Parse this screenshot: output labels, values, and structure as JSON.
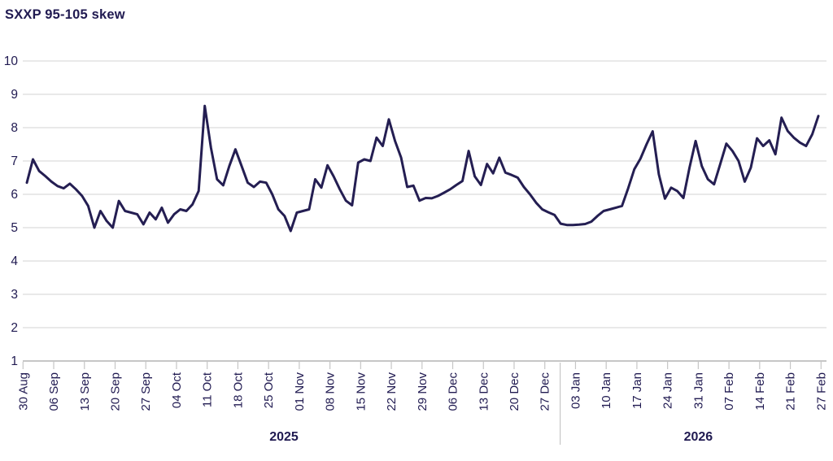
{
  "chart_data": {
    "type": "line",
    "title": "SXXP 95-105 skew",
    "xlabel": "",
    "ylabel": "",
    "ylim": [
      1,
      10
    ],
    "y_ticks": [
      1,
      2,
      3,
      4,
      5,
      6,
      7,
      8,
      9,
      10
    ],
    "grid": "horizontal",
    "legend": "none",
    "x_tick_labels": [
      "30 Aug",
      "06 Sep",
      "13 Sep",
      "20 Sep",
      "27 Sep",
      "04 Oct",
      "11 Oct",
      "18 Oct",
      "25 Oct",
      "01 Nov",
      "08 Nov",
      "15 Nov",
      "22 Nov",
      "29 Nov",
      "06 Dec",
      "13 Dec",
      "20 Dec",
      "27 Dec",
      "03 Jan",
      "10 Jan",
      "17 Jan",
      "24 Jan",
      "31 Jan",
      "07 Feb",
      "14 Feb",
      "21 Feb",
      "27 Feb"
    ],
    "year_labels": [
      {
        "text": "2025",
        "from_tick": 0,
        "to_tick": 17
      },
      {
        "text": "2026",
        "from_tick": 18,
        "to_tick": 26
      }
    ],
    "year_separator_between_ticks": [
      17,
      18
    ],
    "series": [
      {
        "name": "SXXP 95-105 skew",
        "dates": [
          "2025-09-01",
          "2025-09-02",
          "2025-09-03",
          "2025-09-04",
          "2025-09-05",
          "2025-09-08",
          "2025-09-09",
          "2025-09-10",
          "2025-09-11",
          "2025-09-12",
          "2025-09-15",
          "2025-09-16",
          "2025-09-17",
          "2025-09-18",
          "2025-09-19",
          "2025-09-22",
          "2025-09-23",
          "2025-09-24",
          "2025-09-25",
          "2025-09-26",
          "2025-09-29",
          "2025-09-30",
          "2025-10-01",
          "2025-10-02",
          "2025-10-03",
          "2025-10-06",
          "2025-10-07",
          "2025-10-08",
          "2025-10-09",
          "2025-10-10",
          "2025-10-13",
          "2025-10-14",
          "2025-10-15",
          "2025-10-16",
          "2025-10-17",
          "2025-10-20",
          "2025-10-21",
          "2025-10-22",
          "2025-10-23",
          "2025-10-24",
          "2025-10-27",
          "2025-10-28",
          "2025-10-29",
          "2025-10-30",
          "2025-10-31",
          "2025-11-03",
          "2025-11-04",
          "2025-11-05",
          "2025-11-06",
          "2025-11-07",
          "2025-11-10",
          "2025-11-11",
          "2025-11-12",
          "2025-11-13",
          "2025-11-14",
          "2025-11-17",
          "2025-11-18",
          "2025-11-19",
          "2025-11-20",
          "2025-11-21",
          "2025-11-24",
          "2025-11-25",
          "2025-11-26",
          "2025-11-27",
          "2025-11-28",
          "2025-12-01",
          "2025-12-02",
          "2025-12-03",
          "2025-12-04",
          "2025-12-05",
          "2025-12-08",
          "2025-12-09",
          "2025-12-10",
          "2025-12-11",
          "2025-12-12",
          "2025-12-15",
          "2025-12-16",
          "2025-12-17",
          "2025-12-18",
          "2025-12-19",
          "2025-12-22",
          "2025-12-23",
          "2025-12-24",
          "2025-12-25",
          "2025-12-26",
          "2025-12-29",
          "2025-12-30",
          "2025-12-31",
          "2026-01-01",
          "2026-01-02",
          "2026-01-05",
          "2026-01-06",
          "2026-01-07",
          "2026-01-08",
          "2026-01-09",
          "2026-01-12",
          "2026-01-13",
          "2026-01-14",
          "2026-01-15",
          "2026-01-16",
          "2026-01-19",
          "2026-01-20",
          "2026-01-21",
          "2026-01-22",
          "2026-01-23",
          "2026-01-26",
          "2026-01-27",
          "2026-01-28",
          "2026-01-29",
          "2026-01-30",
          "2026-02-02",
          "2026-02-03",
          "2026-02-04",
          "2026-02-05",
          "2026-02-06",
          "2026-02-09",
          "2026-02-10",
          "2026-02-11",
          "2026-02-12",
          "2026-02-13",
          "2026-02-16",
          "2026-02-17",
          "2026-02-18",
          "2026-02-19",
          "2026-02-20",
          "2026-02-23",
          "2026-02-24",
          "2026-02-25",
          "2026-02-26",
          "2026-02-27"
        ],
        "values": [
          6.35,
          7.05,
          6.7,
          6.55,
          6.38,
          6.25,
          6.18,
          6.32,
          6.15,
          5.95,
          5.65,
          5.0,
          5.5,
          5.2,
          5.0,
          5.8,
          5.5,
          5.45,
          5.4,
          5.1,
          5.45,
          5.25,
          5.6,
          5.15,
          5.4,
          5.55,
          5.5,
          5.7,
          6.1,
          8.65,
          7.4,
          6.45,
          6.27,
          6.85,
          7.35,
          6.85,
          6.35,
          6.22,
          6.38,
          6.35,
          6.0,
          5.55,
          5.35,
          4.9,
          5.45,
          5.5,
          5.55,
          6.45,
          6.2,
          6.87,
          6.54,
          6.15,
          5.81,
          5.67,
          6.95,
          7.05,
          7.0,
          7.7,
          7.45,
          8.25,
          7.6,
          7.1,
          6.22,
          6.26,
          5.81,
          5.89,
          5.88,
          5.95,
          6.05,
          6.15,
          6.28,
          6.4,
          7.3,
          6.54,
          6.28,
          6.91,
          6.63,
          7.1,
          6.65,
          6.58,
          6.5,
          6.22,
          6.0,
          5.75,
          5.55,
          5.46,
          5.38,
          5.12,
          5.08,
          5.08,
          5.09,
          5.11,
          5.18,
          5.35,
          5.5,
          5.55,
          5.6,
          5.65,
          6.18,
          6.75,
          7.07,
          7.5,
          7.89,
          6.6,
          5.87,
          6.2,
          6.1,
          5.89,
          6.8,
          7.6,
          6.85,
          6.45,
          6.3,
          6.9,
          7.52,
          7.3,
          7.0,
          6.38,
          6.8,
          7.68,
          7.45,
          7.62,
          7.2,
          8.3,
          7.9,
          7.7,
          7.55,
          7.45,
          7.8,
          8.35
        ]
      }
    ],
    "colors": {
      "line": "#241e52",
      "text": "#201a51",
      "gridline": "#dcdcdc",
      "axis": "#c6c6c6",
      "background": "#ffffff"
    }
  }
}
